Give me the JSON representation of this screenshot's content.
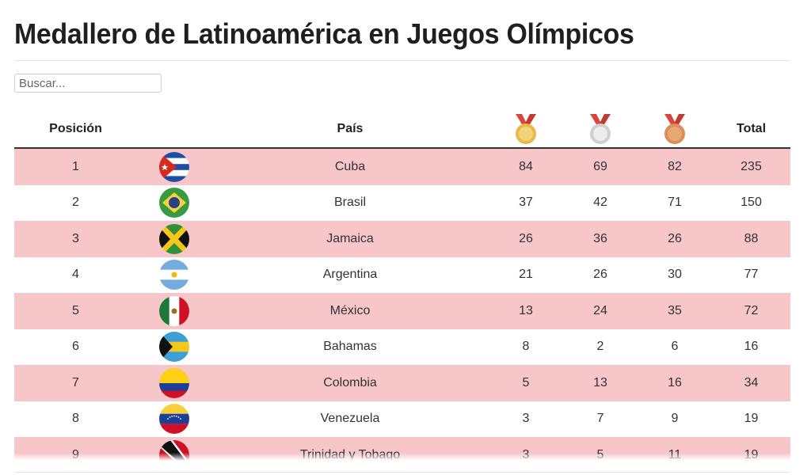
{
  "page": {
    "title": "Medallero de Latinoamérica en Juegos Olímpicos"
  },
  "search": {
    "placeholder": "Buscar..."
  },
  "table": {
    "headers": {
      "position": "Posición",
      "country": "País",
      "gold": "gold-medal-icon",
      "silver": "silver-medal-icon",
      "bronze": "bronze-medal-icon",
      "total": "Total"
    },
    "rows": [
      {
        "position": "1",
        "flag": "cuba-flag-icon",
        "country": "Cuba",
        "gold": "84",
        "silver": "69",
        "bronze": "82",
        "total": "235"
      },
      {
        "position": "2",
        "flag": "brazil-flag-icon",
        "country": "Brasil",
        "gold": "37",
        "silver": "42",
        "bronze": "71",
        "total": "150"
      },
      {
        "position": "3",
        "flag": "jamaica-flag-icon",
        "country": "Jamaica",
        "gold": "26",
        "silver": "36",
        "bronze": "26",
        "total": "88"
      },
      {
        "position": "4",
        "flag": "argentina-flag-icon",
        "country": "Argentina",
        "gold": "21",
        "silver": "26",
        "bronze": "30",
        "total": "77"
      },
      {
        "position": "5",
        "flag": "mexico-flag-icon",
        "country": "México",
        "gold": "13",
        "silver": "24",
        "bronze": "35",
        "total": "72"
      },
      {
        "position": "6",
        "flag": "bahamas-flag-icon",
        "country": "Bahamas",
        "gold": "8",
        "silver": "2",
        "bronze": "6",
        "total": "16"
      },
      {
        "position": "7",
        "flag": "colombia-flag-icon",
        "country": "Colombia",
        "gold": "5",
        "silver": "13",
        "bronze": "16",
        "total": "34"
      },
      {
        "position": "8",
        "flag": "venezuela-flag-icon",
        "country": "Venezuela",
        "gold": "3",
        "silver": "7",
        "bronze": "9",
        "total": "19"
      },
      {
        "position": "9",
        "flag": "trinidad-and-tobago-flag-icon",
        "country": "Trinidad y Tobago",
        "gold": "3",
        "silver": "5",
        "bronze": "11",
        "total": "19"
      }
    ]
  },
  "colors": {
    "row_highlight": "#f6c6c9",
    "gold": "#e8b94a",
    "silver": "#d9d9d9",
    "bronze": "#d98f57",
    "ribbon": "#d9453f"
  }
}
